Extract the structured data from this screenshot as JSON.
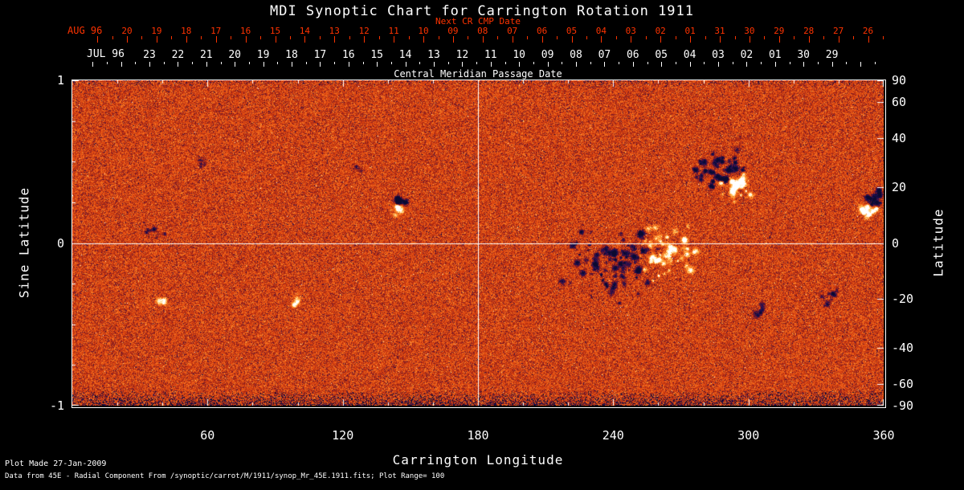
{
  "title": "MDI Synoptic Chart for Carrington Rotation 1911",
  "colors": {
    "background": "#000000",
    "frame": "#ffffff",
    "red_axis": "#ff3300",
    "white_text": "#ffffff"
  },
  "top_axes": {
    "next_cr_label": "Next CR CMP Date",
    "cmp_label": "Central Meridian Passage Date",
    "aug": {
      "month_label": "AUG 96",
      "color": "#ff3300",
      "start_x": 158,
      "spacing": 36.9,
      "days": [
        "20",
        "19",
        "18",
        "17",
        "16",
        "15",
        "14",
        "13",
        "12",
        "11",
        "10",
        "09",
        "08",
        "07",
        "06",
        "05",
        "04",
        "03",
        "02",
        "01",
        "31",
        "30",
        "29",
        "28",
        "27",
        "26"
      ]
    },
    "jul": {
      "month_label": "JUL 96",
      "color": "#ffffff",
      "start_x": 186,
      "spacing": 35.4,
      "days": [
        "23",
        "22",
        "21",
        "20",
        "19",
        "18",
        "17",
        "16",
        "15",
        "14",
        "13",
        "12",
        "11",
        "10",
        "09",
        "08",
        "07",
        "06",
        "05",
        "04",
        "03",
        "02",
        "01",
        "30",
        "29"
      ]
    }
  },
  "footer": {
    "line1": "Plot Made 27-Jan-2009",
    "line2": "Data from 45E - Radial Component From  /synoptic/carrot/M/1911/synop_Mr_45E.1911.fits; Plot Range=  100"
  },
  "chart_data": {
    "type": "heatmap",
    "title": "MDI Synoptic Chart for Carrington Rotation 1911",
    "subtitle_top_axis": "Next CR CMP Date",
    "second_top_axis": "Central Meridian Passage Date",
    "xlabel": "Carrington Longitude",
    "ylabel_left": "Sine Latitude",
    "ylabel_right": "Latitude",
    "x_range": [
      0,
      360
    ],
    "y_range_sine_latitude": [
      -1,
      1
    ],
    "x_ticks": [
      60,
      120,
      180,
      240,
      300,
      360
    ],
    "x_minor_step": 20,
    "y_left_ticks": [
      1,
      0,
      -1
    ],
    "y_left_minor_step": 0.25,
    "y_right_ticks": [
      90,
      60,
      40,
      20,
      0,
      -20,
      -40,
      -60,
      -90
    ],
    "crosshair": {
      "longitude": 180,
      "sine_latitude": 0
    },
    "plot_range_gauss": 100,
    "grid": false,
    "legend": "none",
    "colormap_stops": [
      {
        "v": -1.0,
        "c": [
          10,
          10,
          48
        ]
      },
      {
        "v": -0.7,
        "c": [
          28,
          16,
          86
        ]
      },
      {
        "v": -0.45,
        "c": [
          64,
          18,
          70
        ]
      },
      {
        "v": -0.25,
        "c": [
          130,
          26,
          34
        ]
      },
      {
        "v": -0.1,
        "c": [
          185,
          48,
          18
        ]
      },
      {
        "v": 0.0,
        "c": [
          214,
          64,
          16
        ]
      },
      {
        "v": 0.15,
        "c": [
          238,
          92,
          24
        ]
      },
      {
        "v": 0.35,
        "c": [
          250,
          136,
          40
        ]
      },
      {
        "v": 0.55,
        "c": [
          255,
          184,
          80
        ]
      },
      {
        "v": 0.75,
        "c": [
          255,
          224,
          150
        ]
      },
      {
        "v": 1.0,
        "c": [
          255,
          255,
          255
        ]
      }
    ],
    "noise": {
      "seed": 19110,
      "sigma": 0.34,
      "dark_speck_prob": 0.012,
      "light_speck_prob": 0.0045,
      "bottom_edge_start": 0.95,
      "bottom_edge_prob": 0.45,
      "top_edge_start": 0.02,
      "top_edge_prob": 0.15
    },
    "active_regions": [
      {
        "lon": 287,
        "slat": 0.44,
        "polarity": -1,
        "spread": 14,
        "spots": 45,
        "amp": 1.3
      },
      {
        "lon": 294,
        "slat": 0.35,
        "polarity": 1,
        "spread": 9,
        "spots": 28,
        "amp": 1.2
      },
      {
        "lon": 239,
        "slat": -0.13,
        "polarity": -1,
        "spread": 24,
        "spots": 70,
        "amp": 1.15
      },
      {
        "lon": 262,
        "slat": -0.06,
        "polarity": 1,
        "spread": 18,
        "spots": 55,
        "amp": 1.1
      },
      {
        "lon": 250,
        "slat": -0.02,
        "polarity": -1,
        "spread": 10,
        "spots": 18,
        "amp": 0.9
      },
      {
        "lon": 145,
        "slat": 0.26,
        "polarity": -1,
        "spread": 4,
        "spots": 10,
        "amp": 1.1
      },
      {
        "lon": 144,
        "slat": 0.21,
        "polarity": 1,
        "spread": 4,
        "spots": 8,
        "amp": 1.0
      },
      {
        "lon": 356,
        "slat": 0.27,
        "polarity": -1,
        "spread": 6,
        "spots": 14,
        "amp": 1.2
      },
      {
        "lon": 353,
        "slat": 0.2,
        "polarity": 1,
        "spread": 6,
        "spots": 16,
        "amp": 1.1
      },
      {
        "lon": 35,
        "slat": 0.08,
        "polarity": -1,
        "spread": 6,
        "spots": 9,
        "amp": 0.8
      },
      {
        "lon": 100,
        "slat": -0.36,
        "polarity": 1,
        "spread": 3,
        "spots": 6,
        "amp": 1.0
      },
      {
        "lon": 41,
        "slat": -0.36,
        "polarity": 1,
        "spread": 3,
        "spots": 5,
        "amp": 0.9
      },
      {
        "lon": 306,
        "slat": -0.43,
        "polarity": -1,
        "spread": 5,
        "spots": 8,
        "amp": 0.8
      },
      {
        "lon": 336,
        "slat": -0.34,
        "polarity": -1,
        "spread": 8,
        "spots": 10,
        "amp": 0.7
      },
      {
        "lon": 57,
        "slat": 0.5,
        "polarity": -1,
        "spread": 5,
        "spots": 6,
        "amp": 0.6
      },
      {
        "lon": 128,
        "slat": 0.45,
        "polarity": -1,
        "spread": 4,
        "spots": 5,
        "amp": 0.5
      }
    ]
  }
}
